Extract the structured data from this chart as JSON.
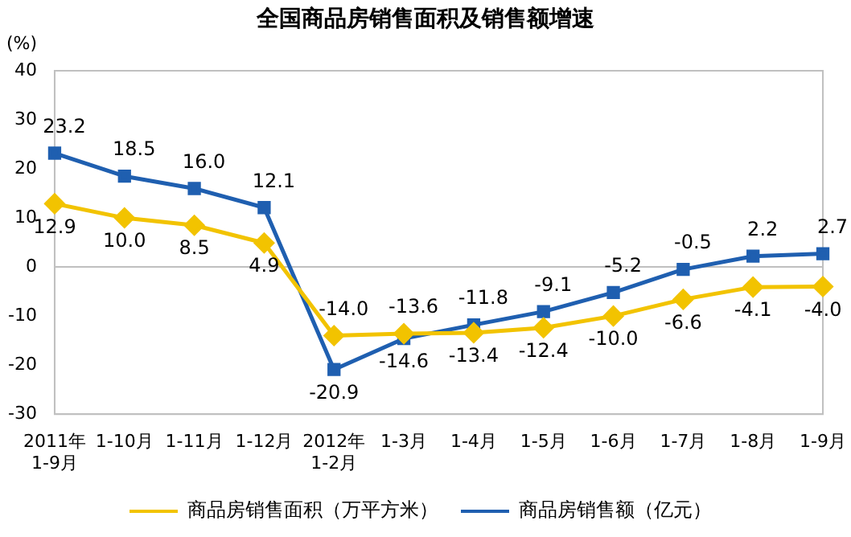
{
  "chart_data": {
    "type": "line",
    "title": "全国商品房销售面积及销售额增速",
    "ylabel": "(%)",
    "categories": [
      "2011年\n1-9月",
      "1-10月",
      "1-11月",
      "1-12月",
      "2012年\n1-2月",
      "1-3月",
      "1-4月",
      "1-5月",
      "1-6月",
      "1-7月",
      "1-8月",
      "1-9月"
    ],
    "series": [
      {
        "name": "商品房销售面积（万平方米）",
        "color": "#f2c300",
        "marker": "diamond",
        "values": [
          12.9,
          10.0,
          8.5,
          4.9,
          -14.0,
          -13.6,
          -13.4,
          -12.4,
          -10.0,
          -6.6,
          -4.1,
          -4.0
        ],
        "value_labels": [
          "12.9",
          "10.0",
          "8.5",
          "4.9",
          "-14.0",
          "-13.6",
          "-13.4",
          "-12.4",
          "-10.0",
          "-6.6",
          "-4.1",
          "-4.0"
        ]
      },
      {
        "name": "商品房销售额（亿元）",
        "color": "#1f5fb0",
        "marker": "square",
        "values": [
          23.2,
          18.5,
          16.0,
          12.1,
          -20.9,
          -14.6,
          -11.8,
          -9.1,
          -5.2,
          -0.5,
          2.2,
          2.7
        ],
        "value_labels": [
          "23.2",
          "18.5",
          "16.0",
          "12.1",
          "-20.9",
          "-14.6",
          "-11.8",
          "-9.1",
          "-5.2",
          "-0.5",
          "2.2",
          "2.7"
        ]
      }
    ],
    "ylim": [
      -30,
      40
    ],
    "yticks": [
      -30,
      -20,
      -10,
      0,
      10,
      20,
      30,
      40
    ],
    "ref_lines": [
      {
        "axis": "y",
        "value": 0,
        "color": "#c0c0c0"
      }
    ],
    "grid": false,
    "legend": "bottom",
    "line_style": "solid"
  }
}
